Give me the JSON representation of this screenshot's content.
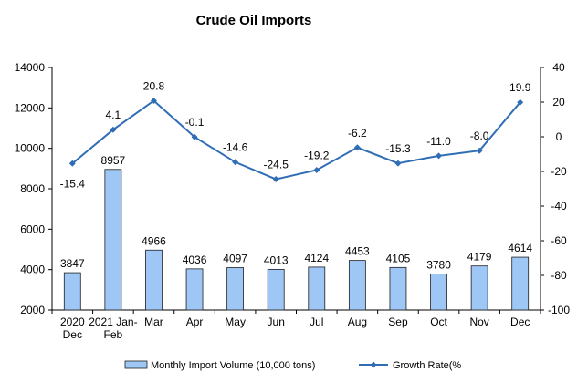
{
  "chart_data": {
    "type": "bar+line",
    "title": "Crude Oil Imports",
    "categories": [
      [
        "2020",
        "Dec"
      ],
      [
        "2021 Jan-",
        "Feb"
      ],
      [
        "Mar"
      ],
      [
        "Apr"
      ],
      [
        "May"
      ],
      [
        "Jun"
      ],
      [
        "Jul"
      ],
      [
        "Aug"
      ],
      [
        "Sep"
      ],
      [
        "Oct"
      ],
      [
        "Nov"
      ],
      [
        "Dec"
      ]
    ],
    "series": [
      {
        "name": "Monthly Import Volume (10,000 tons)",
        "type": "bar",
        "axis": "left",
        "values": [
          3847,
          8957,
          4966,
          4036,
          4097,
          4013,
          4124,
          4453,
          4105,
          3780,
          4179,
          4614
        ],
        "labels": [
          "3847",
          "8957",
          "4966",
          "4036",
          "4097",
          "4013",
          "4124",
          "4453",
          "4105",
          "3780",
          "4179",
          "4614"
        ]
      },
      {
        "name": "Growth Rate(%",
        "type": "line",
        "axis": "right",
        "values": [
          -15.4,
          4.1,
          20.8,
          -0.1,
          -14.6,
          -24.5,
          -19.2,
          -6.2,
          -15.3,
          -11.0,
          -8.0,
          19.9
        ],
        "labels": [
          "-15.4",
          "4.1",
          "20.8",
          "-0.1",
          "-14.6",
          "-24.5",
          "-19.2",
          "-6.2",
          "-15.3",
          "-11.0",
          "-8.0",
          "19.9"
        ]
      }
    ],
    "y_left": {
      "min": 2000,
      "max": 14000,
      "ticks": [
        2000,
        4000,
        6000,
        8000,
        10000,
        12000,
        14000
      ]
    },
    "y_right": {
      "min": -100,
      "max": 40,
      "ticks": [
        -100,
        -80,
        -60,
        -40,
        -20,
        0,
        20,
        40
      ]
    },
    "legend_position": "bottom",
    "colors": {
      "bar_fill": "#9ec7f5",
      "bar_stroke": "#1f1f1f",
      "line": "#2f6db5",
      "axis": "#000000"
    }
  }
}
